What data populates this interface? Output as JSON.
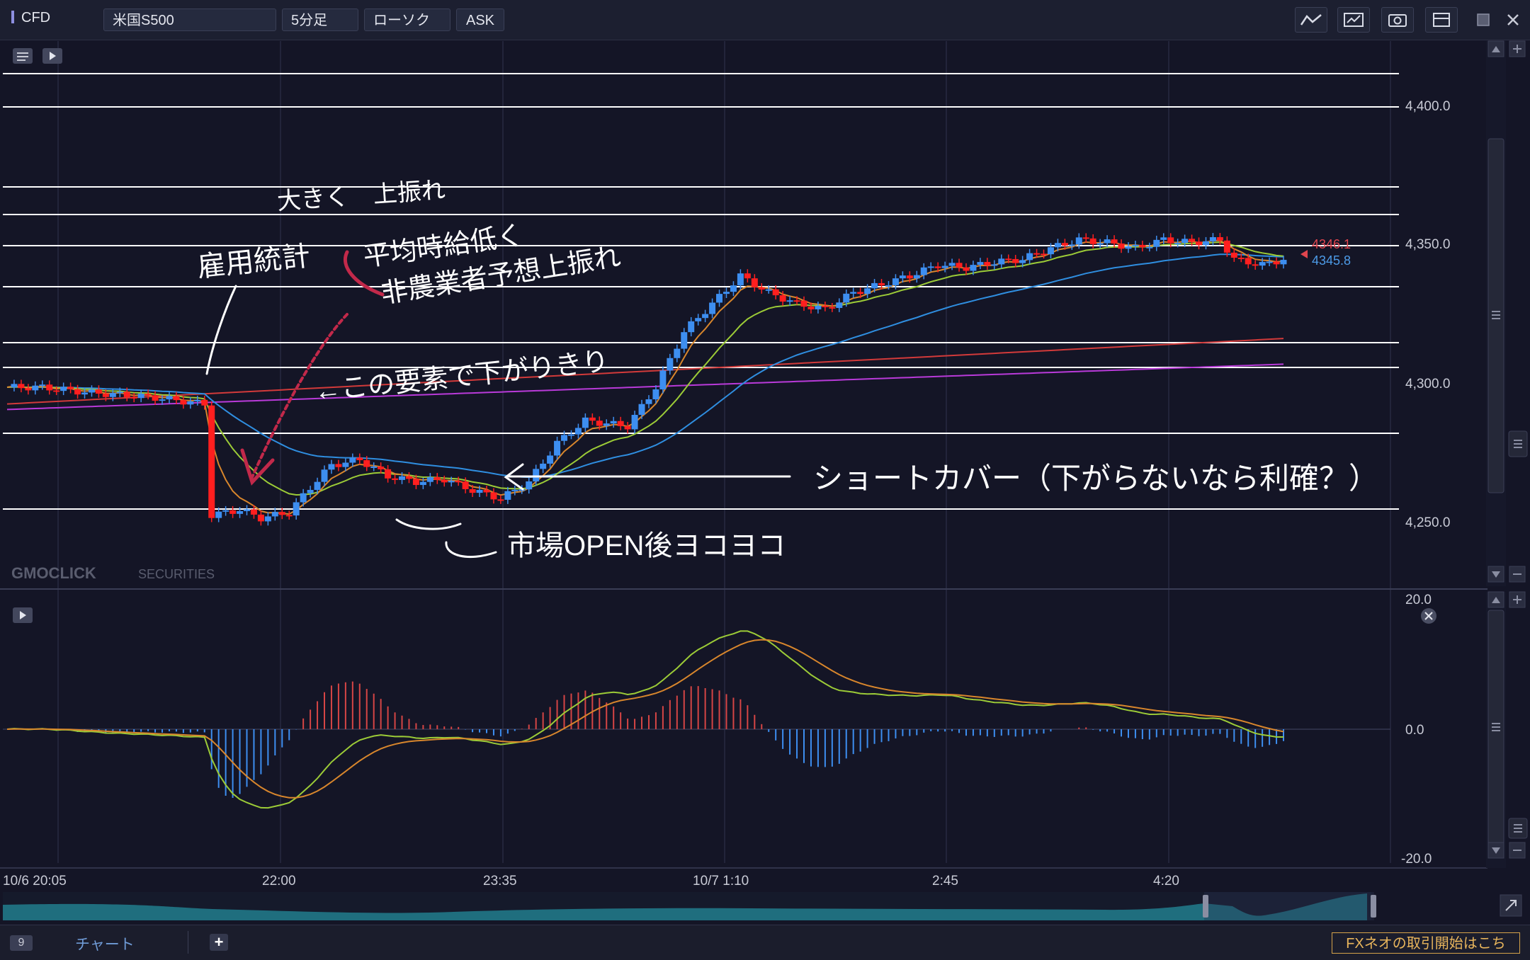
{
  "toolbar": {
    "market": "CFD",
    "symbol": "米国S500",
    "timeframe": "5分足",
    "chart_type": "ローソク",
    "price_side": "ASK"
  },
  "watermark": {
    "brand": "GMOCLICK",
    "brand_suffix": "SECURITIES"
  },
  "price_axis": {
    "labels": [
      "4,400.0",
      "4,350.0",
      "4,300.0",
      "4,250.0"
    ],
    "last_price_red": "4346.1",
    "last_price_blue": "4345.8"
  },
  "indicator_axis": {
    "labels": [
      "20.0",
      "0.0",
      "-20.0"
    ]
  },
  "time_axis": {
    "labels": [
      "10/6 20:05",
      "22:00",
      "23:35",
      "10/7 1:10",
      "2:45",
      "4:20"
    ]
  },
  "annotations": {
    "employment": "雇用統計",
    "big_upside": "大きく　上振れ",
    "wages": "平均時給低く",
    "payrolls": "非農業者予想上振れ",
    "bottom": "←この要素で下がりきり",
    "short_cover": "ショートカバー（下がらないなら利確？）",
    "market_open": "市場OPEN後ヨコヨコ"
  },
  "status_bar": {
    "tab_count": "9",
    "tab_label": "チャート",
    "promo": "FXネオの取引開始はこち"
  },
  "colors": {
    "background": "#141526",
    "up_candle": "#3d8ef0",
    "down_candle": "#ff1f1f",
    "ma_short": "#d8862c",
    "ma_mid": "#9ccb37",
    "ma_long": "#2f8ee0",
    "ma_200": "#d23a3a",
    "ma_300": "#b93ad9",
    "hand_annotation": "#ffffff",
    "hand_arrow": "#c2294a"
  }
}
